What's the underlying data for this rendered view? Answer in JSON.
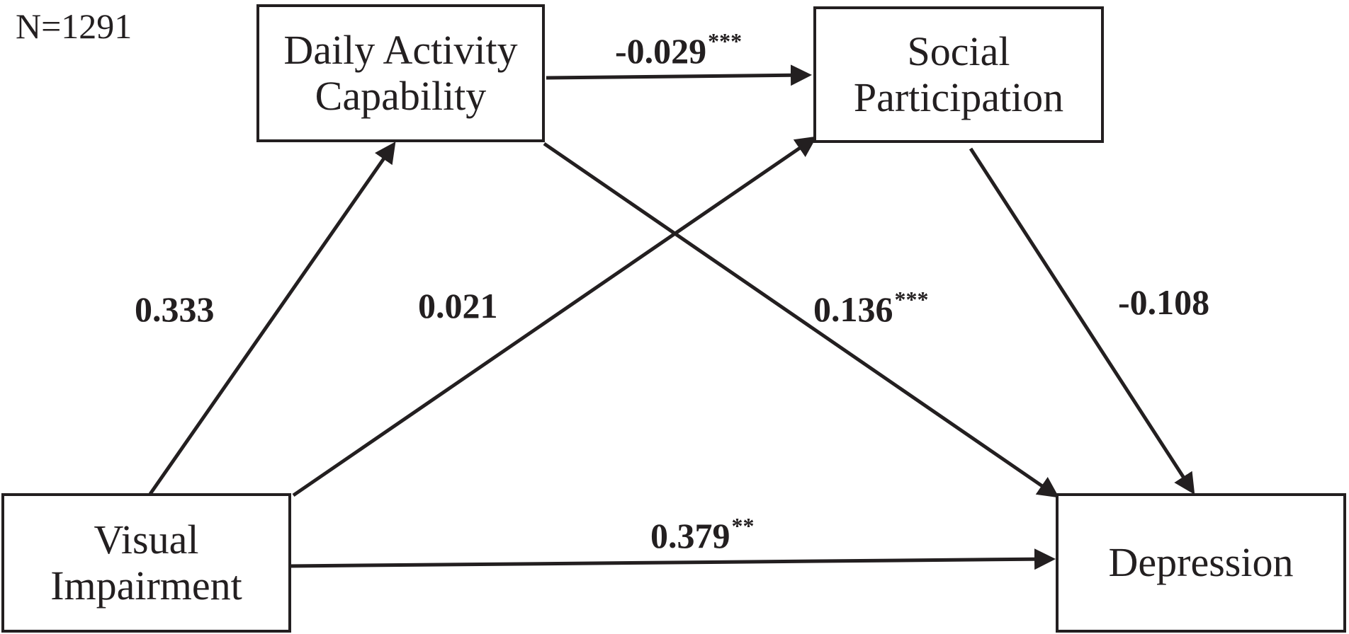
{
  "diagram": {
    "sample_size": "N=1291",
    "nodes": {
      "daily_activity": {
        "line1": "Daily Activity",
        "line2": "Capability"
      },
      "social_participation": {
        "line1": "Social",
        "line2": "Participation"
      },
      "visual_impairment": {
        "line1": "Visual",
        "line2": "Impairment"
      },
      "depression": {
        "line1": "Depression"
      }
    },
    "paths": {
      "vi_to_dac": {
        "value": "0.333",
        "sig": ""
      },
      "vi_to_sp": {
        "value": "0.021",
        "sig": ""
      },
      "dac_to_sp": {
        "value": "-0.029",
        "sig": "***"
      },
      "dac_to_dep": {
        "value": "0.136",
        "sig": "***"
      },
      "sp_to_dep": {
        "value": "-0.108",
        "sig": ""
      },
      "vi_to_dep": {
        "value": "0.379",
        "sig": "**"
      }
    }
  }
}
